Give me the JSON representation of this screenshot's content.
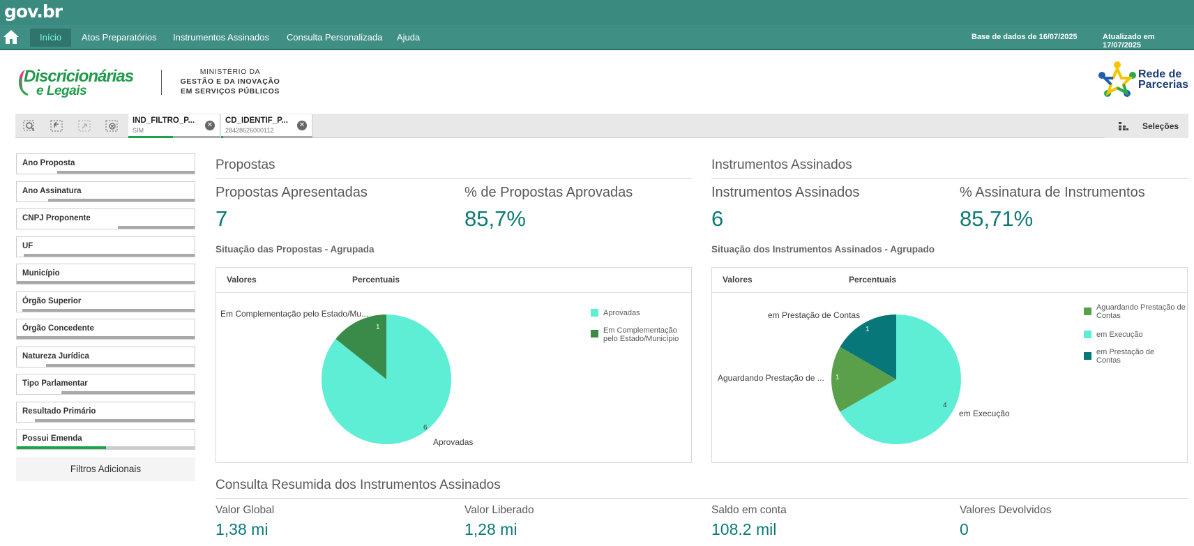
{
  "header": {
    "brand": "gov.br",
    "nav": [
      {
        "label": "Início",
        "active": true
      },
      {
        "label": "Atos Preparatórios"
      },
      {
        "label": "Instrumentos Assinados"
      },
      {
        "label": "Consulta Personalizada"
      },
      {
        "label": "Ajuda"
      }
    ],
    "db_date": "Base de dados de 16/07/2025",
    "updated": "Atualizado em 17/07/2025"
  },
  "logos": {
    "disc_line1": "Discricionárias",
    "disc_line2": "e Legais",
    "ministry_1": "MINISTÉRIO DA",
    "ministry_2": "GESTÃO E DA INOVAÇÃO",
    "ministry_3": "EM SERVIÇOS PÚBLICOS",
    "rede_1": "Rede de",
    "rede_2": "Parcerias"
  },
  "selections": {
    "chips": [
      {
        "title": "IND_FILTRO_P...",
        "value": "SIM"
      },
      {
        "title": "CD_IDENTIF_P...",
        "value": "28428626000112"
      }
    ],
    "selecoes_label": "Seleções"
  },
  "filters": {
    "items": [
      {
        "label": "Ano Proposta"
      },
      {
        "label": "Ano Assinatura"
      },
      {
        "label": "CNPJ Proponente"
      },
      {
        "label": "UF"
      },
      {
        "label": "Município"
      },
      {
        "label": "Órgão Superior"
      },
      {
        "label": "Órgão Concedente"
      },
      {
        "label": "Natureza Jurídica"
      },
      {
        "label": "Tipo Parlamentar"
      },
      {
        "label": "Resultado Primário"
      },
      {
        "label": "Possui Emenda"
      }
    ],
    "extra_label": "Filtros Adicionais"
  },
  "propostas": {
    "section_title": "Propostas",
    "kpi1_label": "Propostas Apresentadas",
    "kpi1_value": "7",
    "kpi2_label": "% de Propostas Aprovadas",
    "kpi2_value": "85,7%",
    "chart_title": "Situação das Propostas - Agrupada",
    "tab1": "Valores",
    "tab2": "Percentuais",
    "legend": [
      {
        "label": "Aprovadas",
        "color": "#5eeed6"
      },
      {
        "label": "Em Complementação pelo Estado/Município",
        "color": "#3a8a4a"
      }
    ],
    "outer_label_1": "Em Complementação pelo Estado/Mu...",
    "outer_label_2": "Aprovadas",
    "num_1": "1",
    "num_2": "6"
  },
  "instrumentos": {
    "section_title": "Instrumentos Assinados",
    "kpi1_label": "Instrumentos Assinados",
    "kpi1_value": "6",
    "kpi2_label": "% Assinatura de Instrumentos",
    "kpi2_value": "85,71%",
    "chart_title": "Situação dos Instrumentos Assinados - Agrupado",
    "tab1": "Valores",
    "tab2": "Percentuais",
    "legend": [
      {
        "label": "Aguardando Prestação de Contas",
        "color": "#5aa04a"
      },
      {
        "label": "em Execução",
        "color": "#5eeed6"
      },
      {
        "label": "em Prestação de Contas",
        "color": "#08777a"
      }
    ],
    "outer_label_1": "em Prestação de Contas",
    "outer_label_2": "Aguardando Prestação de ...",
    "outer_label_3": "em Execução",
    "num_1": "1",
    "num_2": "1",
    "num_3": "4"
  },
  "resumo": {
    "section_title": "Consulta Resumida dos Instrumentos Assinados",
    "items": [
      {
        "label": "Valor Global",
        "value": "1,38 mi"
      },
      {
        "label": "Valor Liberado",
        "value": "1,28 mi"
      },
      {
        "label": "Saldo em conta",
        "value": "108.2 mil"
      },
      {
        "label": "Valores Devolvidos",
        "value": "0"
      }
    ]
  },
  "chart_data": [
    {
      "type": "pie",
      "title": "Situação das Propostas - Agrupada",
      "categories": [
        "Aprovadas",
        "Em Complementação pelo Estado/Município"
      ],
      "values": [
        6,
        1
      ]
    },
    {
      "type": "pie",
      "title": "Situação dos Instrumentos Assinados - Agrupado",
      "categories": [
        "Aguardando Prestação de Contas",
        "em Execução",
        "em Prestação de Contas"
      ],
      "values": [
        1,
        4,
        1
      ]
    }
  ]
}
